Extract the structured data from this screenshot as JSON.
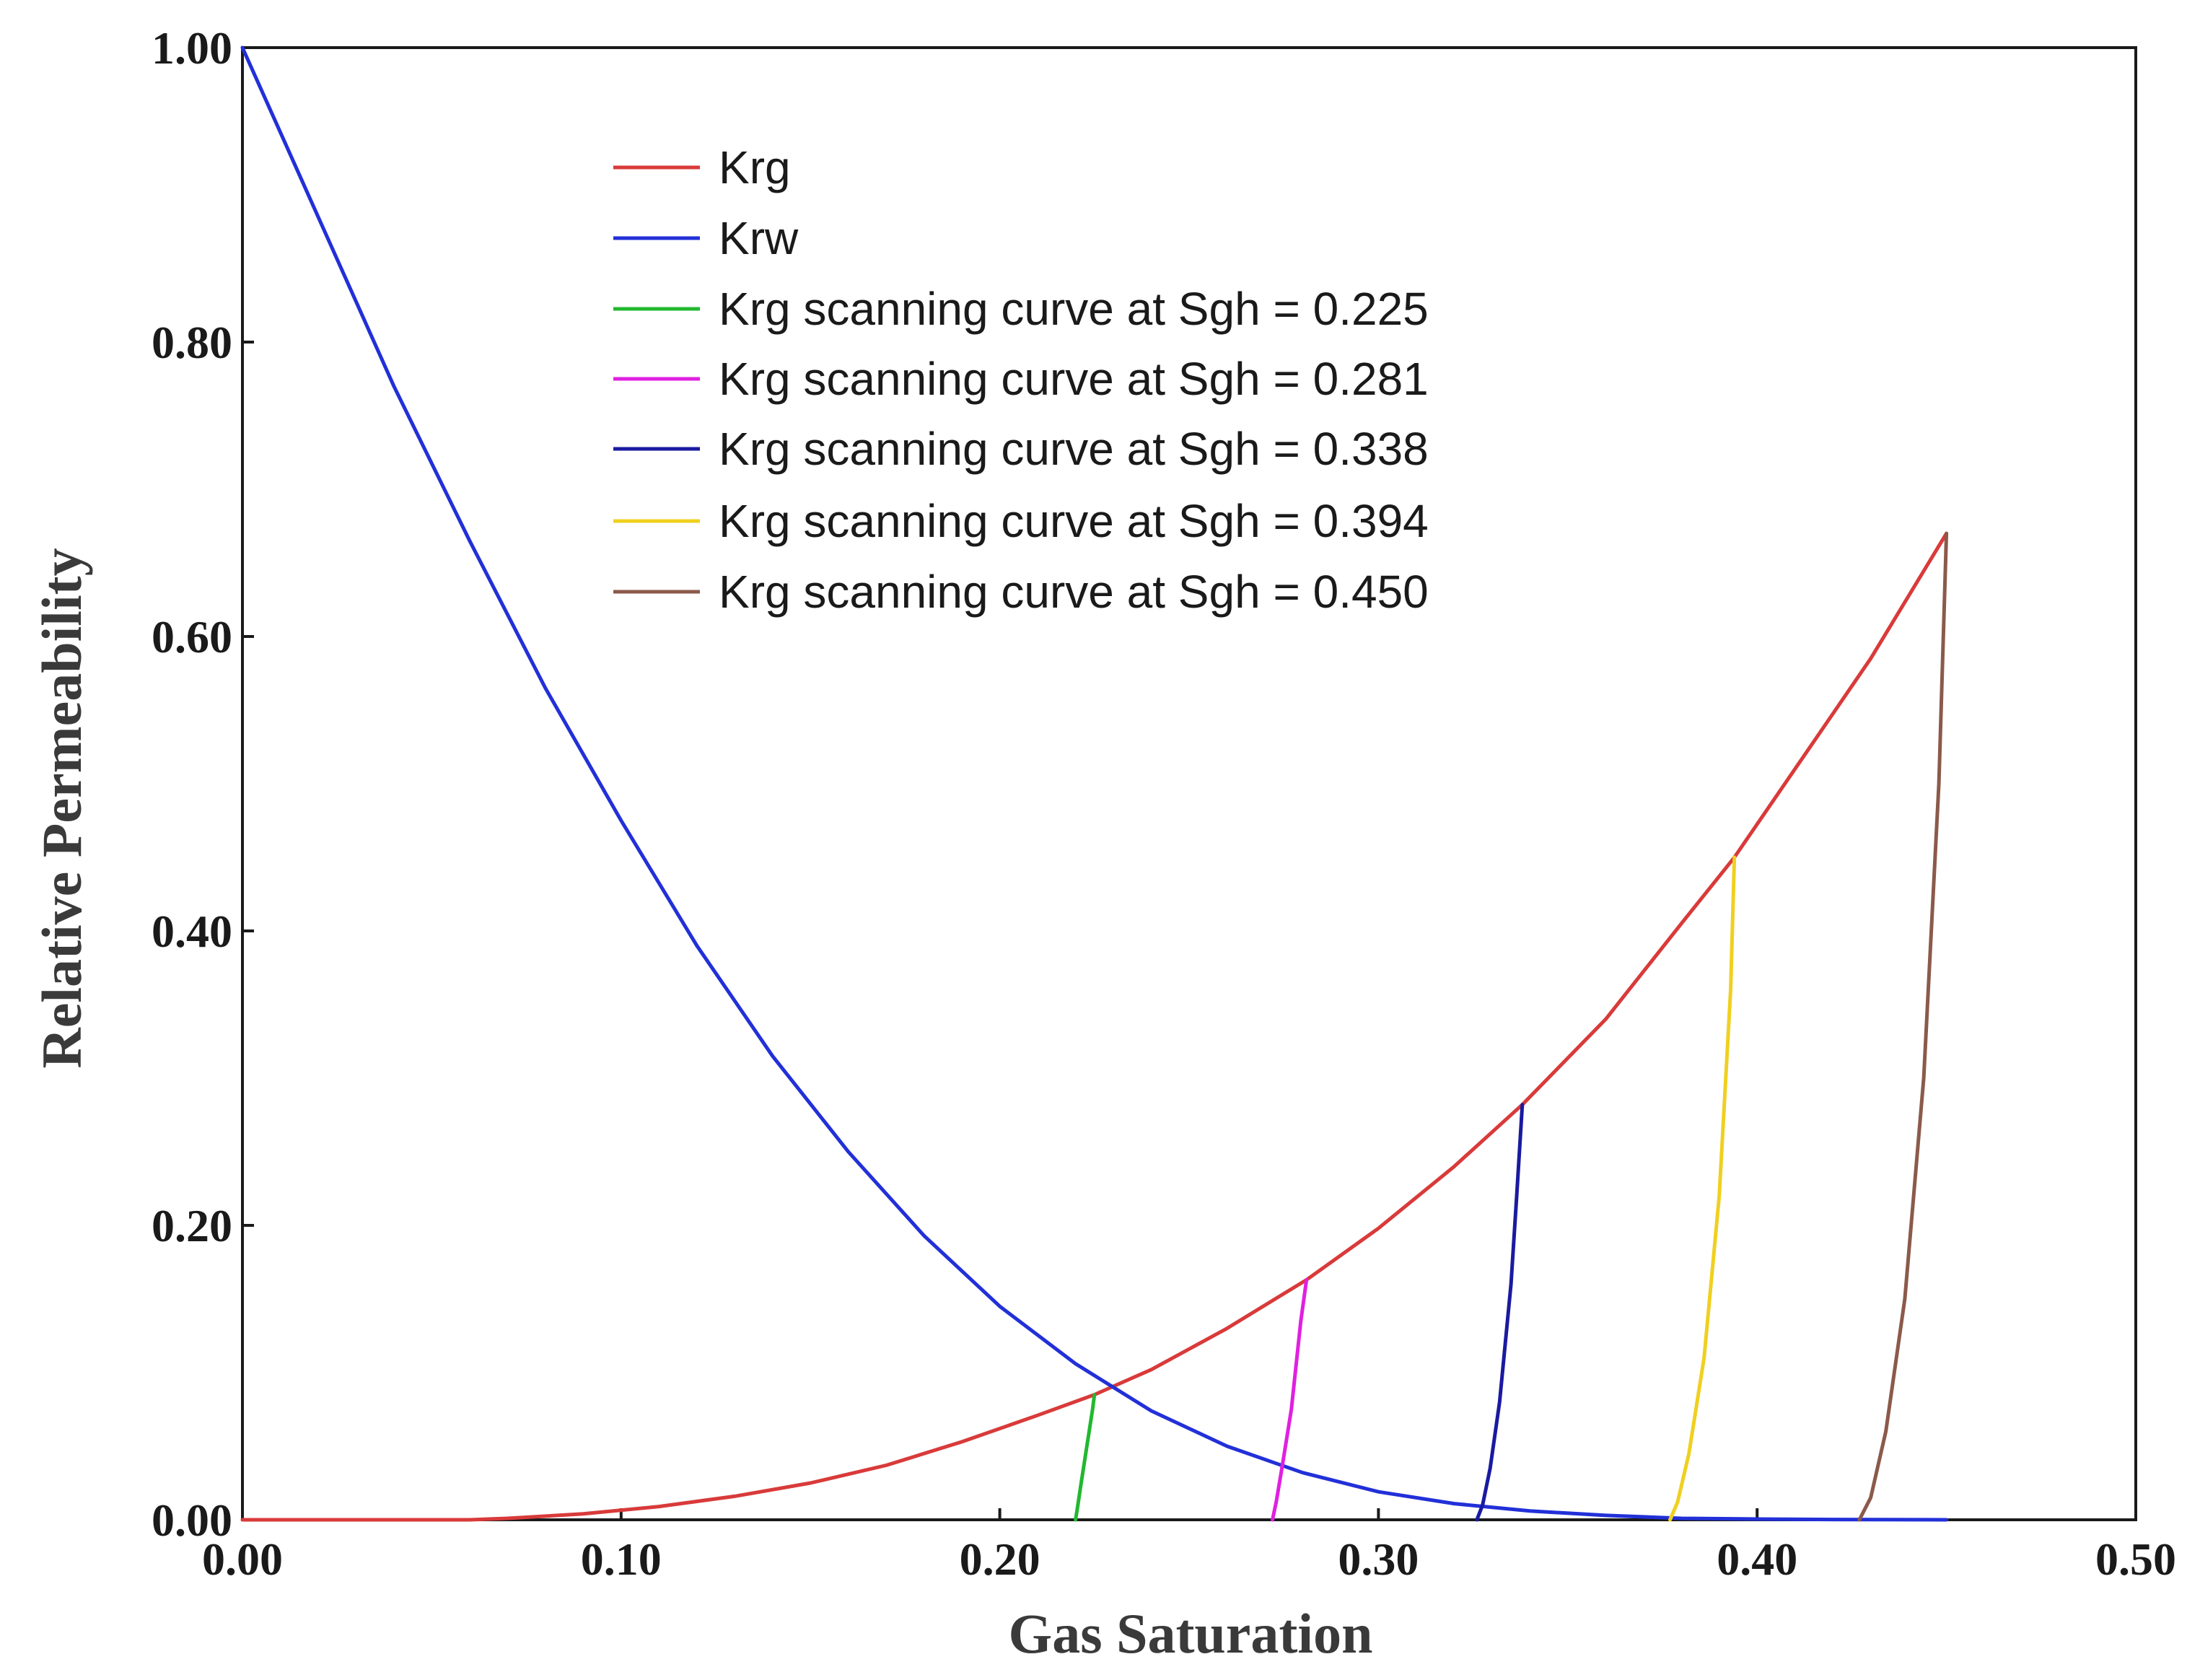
{
  "chart_data": {
    "type": "line",
    "title": "",
    "xlabel": "Gas Saturation",
    "ylabel": "Relative Permeability",
    "xlim": [
      0,
      0.5
    ],
    "ylim": [
      0,
      1.0
    ],
    "x_ticks": [
      "0.00",
      "0.10",
      "0.20",
      "0.30",
      "0.40",
      "0.50"
    ],
    "y_ticks": [
      "0.00",
      "0.20",
      "0.40",
      "0.60",
      "0.80",
      "1.00"
    ],
    "grid": false,
    "legend_position": "top-center",
    "series": [
      {
        "name": "Krg",
        "color": "#d93a3a",
        "x": [
          0,
          0.03,
          0.06,
          0.07,
          0.09,
          0.11,
          0.13,
          0.15,
          0.17,
          0.19,
          0.21,
          0.225,
          0.24,
          0.26,
          0.281,
          0.3,
          0.32,
          0.338,
          0.36,
          0.38,
          0.394,
          0.41,
          0.43,
          0.45
        ],
        "y": [
          0,
          0,
          0,
          0.001,
          0.004,
          0.009,
          0.016,
          0.025,
          0.037,
          0.053,
          0.071,
          0.085,
          0.102,
          0.13,
          0.163,
          0.198,
          0.24,
          0.282,
          0.34,
          0.405,
          0.45,
          0.51,
          0.585,
          0.67
        ]
      },
      {
        "name": "Krw",
        "color": "#2230d8",
        "x": [
          0,
          0.02,
          0.04,
          0.06,
          0.08,
          0.1,
          0.12,
          0.14,
          0.16,
          0.18,
          0.2,
          0.22,
          0.24,
          0.26,
          0.28,
          0.3,
          0.32,
          0.34,
          0.36,
          0.38,
          0.4,
          0.42,
          0.45
        ],
        "y": [
          1.0,
          0.885,
          0.77,
          0.665,
          0.565,
          0.475,
          0.39,
          0.315,
          0.25,
          0.193,
          0.145,
          0.106,
          0.074,
          0.05,
          0.032,
          0.019,
          0.011,
          0.006,
          0.003,
          0.001,
          0.0005,
          0.0002,
          0.0
        ]
      },
      {
        "name": "Krg scanning curve at Sgh = 0.225",
        "color": "#22b830",
        "x": [
          0.22,
          0.2205,
          0.2215,
          0.223,
          0.2245,
          0.225
        ],
        "y": [
          0,
          0.008,
          0.025,
          0.05,
          0.075,
          0.085
        ]
      },
      {
        "name": "Krg scanning curve at Sgh = 0.281",
        "color": "#e020e0",
        "x": [
          0.272,
          0.273,
          0.2745,
          0.277,
          0.2795,
          0.281
        ],
        "y": [
          0,
          0.012,
          0.035,
          0.075,
          0.135,
          0.163
        ]
      },
      {
        "name": "Krg scanning curve at Sgh = 0.338",
        "color": "#1a1aa0",
        "x": [
          0.326,
          0.3275,
          0.3295,
          0.332,
          0.335,
          0.3365,
          0.338
        ],
        "y": [
          0,
          0.01,
          0.035,
          0.08,
          0.16,
          0.22,
          0.282
        ]
      },
      {
        "name": "Krg scanning curve at Sgh = 0.394",
        "color": "#f0d020",
        "x": [
          0.377,
          0.379,
          0.382,
          0.386,
          0.39,
          0.393,
          0.394
        ],
        "y": [
          0,
          0.012,
          0.045,
          0.11,
          0.22,
          0.36,
          0.45
        ]
      },
      {
        "name": "Krg scanning curve at Sgh = 0.450",
        "color": "#8b5a4a",
        "x": [
          0.427,
          0.43,
          0.434,
          0.439,
          0.444,
          0.448,
          0.45
        ],
        "y": [
          0,
          0.015,
          0.06,
          0.15,
          0.3,
          0.5,
          0.67
        ]
      }
    ]
  }
}
